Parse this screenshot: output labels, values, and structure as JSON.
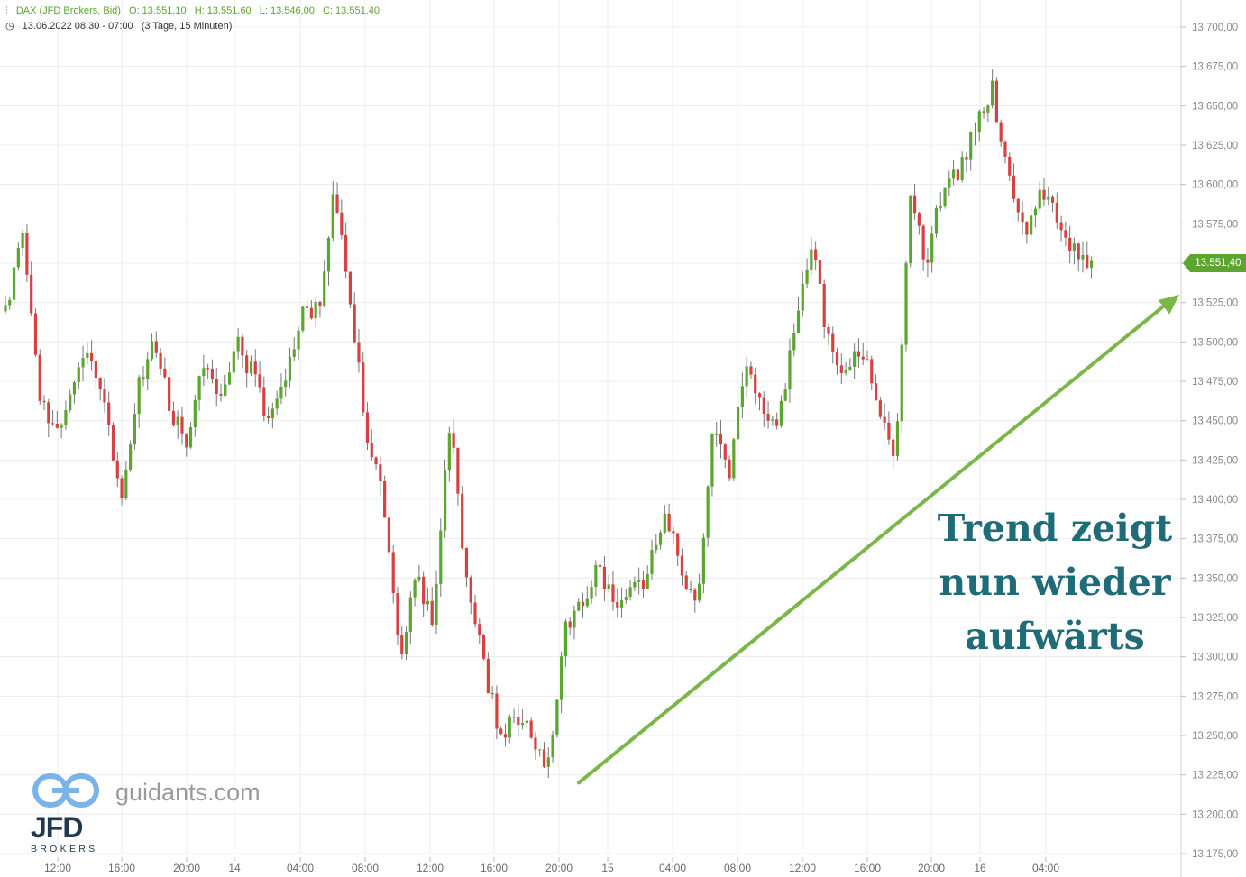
{
  "header": {
    "symbol": "DAX (JFD Brokers, Bid)",
    "open": "O: 13.551,10",
    "high": "H: 13.551,60",
    "low": "L: 13.546,00",
    "close": "C: 13.551,40",
    "date_range": "13.06.2022 08:30 - 07:00",
    "period": "(3 Tage, 15 Minuten)"
  },
  "last_price": "13.551,40",
  "annotation": {
    "line1": "Trend zeigt",
    "line2": "nun wieder",
    "line3": "aufwärts"
  },
  "branding": {
    "site": "guidants.com",
    "brand": "JFD",
    "brand_sub": "BROKERS"
  },
  "colors": {
    "up": "#5aa62e",
    "down": "#d64141",
    "trendline": "#7ab648",
    "annotation": "#1f6b78",
    "grid": "#ececec"
  },
  "chart_data": {
    "type": "candlestick",
    "ylim": [
      13175,
      13700
    ],
    "y_ticks": [
      "13.700,00",
      "13.675,00",
      "13.650,00",
      "13.625,00",
      "13.600,00",
      "13.575,00",
      "13.550,00",
      "13.525,00",
      "13.500,00",
      "13.475,00",
      "13.450,00",
      "13.425,00",
      "13.400,00",
      "13.375,00",
      "13.350,00",
      "13.325,00",
      "13.300,00",
      "13.275,00",
      "13.250,00",
      "13.225,00",
      "13.200,00",
      "13.175,00"
    ],
    "x_labels": [
      "12:00",
      "16:00",
      "20:00",
      "14",
      "04:00",
      "08:00",
      "12:00",
      "16:00",
      "20:00",
      "15",
      "04:00",
      "08:00",
      "12:00",
      "16:00",
      "20:00",
      "16",
      "04:00"
    ],
    "grid": true,
    "anchors": [
      13520,
      13570,
      13470,
      13440,
      13470,
      13500,
      13460,
      13400,
      13470,
      13500,
      13460,
      13430,
      13490,
      13460,
      13500,
      13480,
      13450,
      13470,
      13520,
      13520,
      13600,
      13520,
      13440,
      13400,
      13300,
      13350,
      13320,
      13450,
      13350,
      13300,
      13250,
      13260,
      13250,
      13230,
      13320,
      13330,
      13360,
      13330,
      13340,
      13350,
      13390,
      13360,
      13330,
      13450,
      13420,
      13490,
      13460,
      13450,
      13510,
      13560,
      13500,
      13480,
      13500,
      13460,
      13420,
      13590,
      13550,
      13600,
      13610,
      13640,
      13660,
      13600,
      13570,
      13600,
      13575,
      13560,
      13551
    ],
    "trendline": {
      "from": {
        "x_label": "20:00",
        "y": 13220
      },
      "to": {
        "x_label": "04:00",
        "y": 13530
      }
    }
  }
}
